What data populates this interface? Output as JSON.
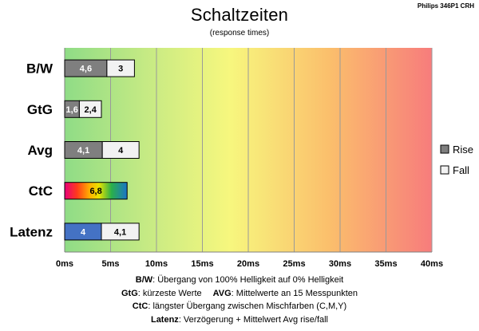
{
  "corner_label": "Philips 346P1  CRH",
  "chart_data": {
    "type": "bar",
    "orientation": "horizontal",
    "stacked": true,
    "title": "Schaltzeiten",
    "subtitle": "(response times)",
    "categories": [
      "B/W",
      "GtG",
      "Avg",
      "CtC",
      "Latenz"
    ],
    "series": [
      {
        "name": "Rise",
        "values": [
          4.6,
          1.6,
          4.1,
          6.8,
          4
        ],
        "labels": [
          "4,6",
          "1,6",
          "4,1",
          "6,8",
          "4"
        ],
        "color": "#7f7f7f"
      },
      {
        "name": "Fall",
        "values": [
          3,
          2.4,
          4,
          null,
          4.1
        ],
        "labels": [
          "3",
          "2,4",
          "4",
          "",
          "4,1"
        ],
        "color": "#f2f2f2"
      }
    ],
    "special_fills": {
      "CtC": "rainbow",
      "Latenz.Rise": "#4472c4"
    },
    "xlim": [
      0,
      40
    ],
    "xticks": [
      0,
      5,
      10,
      15,
      20,
      25,
      30,
      35,
      40
    ],
    "tick_suffix": "ms",
    "grid": true,
    "background": "gradient green-yellow-red",
    "legend_position": "right"
  },
  "notes": [
    {
      "parts": [
        {
          "b": "B/W"
        },
        {
          "t": ":  Übergang von 100% Helligkeit auf 0% Helligkeit"
        }
      ]
    },
    {
      "parts": [
        {
          "b": "GtG"
        },
        {
          "t": ": kürzeste  Werte"
        },
        {
          "gap": true
        },
        {
          "b": "AVG"
        },
        {
          "t": ": Mittelwerte  an 15 Messpunkten"
        }
      ]
    },
    {
      "parts": [
        {
          "b": "CtC"
        },
        {
          "t": ": längster Übergang  zwischen Mischfarben  (C,M,Y)"
        }
      ]
    },
    {
      "parts": [
        {
          "b": "Latenz"
        },
        {
          "t": ": Verzögerung  + Mittelwert  Avg rise/fall"
        }
      ]
    }
  ]
}
